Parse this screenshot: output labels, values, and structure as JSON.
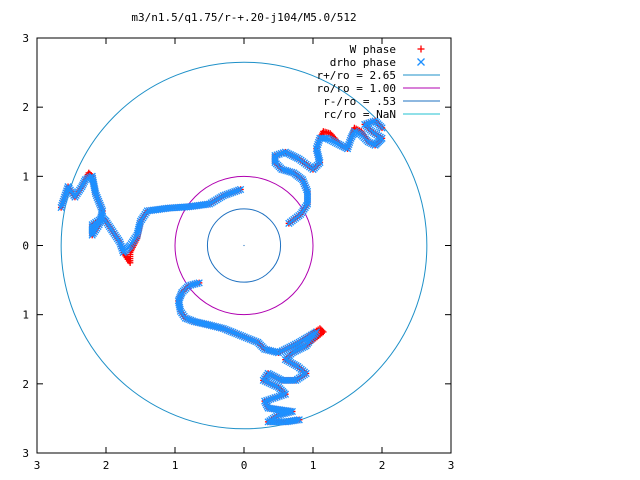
{
  "chart_data": {
    "type": "scatter",
    "title": "m3/n1.5/q1.75/r-+.20-j104/M5.0/512",
    "xlabel": "",
    "ylabel": "",
    "xlim": [
      -3,
      3
    ],
    "ylim": [
      -3,
      3
    ],
    "x_ticks": [
      {
        "value": -3,
        "label": "3"
      },
      {
        "value": -2,
        "label": "2"
      },
      {
        "value": -1,
        "label": "1"
      },
      {
        "value": 0,
        "label": "0"
      },
      {
        "value": 1,
        "label": "1"
      },
      {
        "value": 2,
        "label": "2"
      },
      {
        "value": 3,
        "label": "3"
      }
    ],
    "y_ticks": [
      {
        "value": -3,
        "label": "3"
      },
      {
        "value": -2,
        "label": "2"
      },
      {
        "value": -1,
        "label": "1"
      },
      {
        "value": 0,
        "label": "0"
      },
      {
        "value": 1,
        "label": "1"
      },
      {
        "value": 2,
        "label": "2"
      },
      {
        "value": 3,
        "label": "3"
      }
    ],
    "grid": false,
    "legend_position": "top-right",
    "series": [
      {
        "name": "W phase",
        "marker": "+",
        "color": "#ff0000",
        "arms": [
          [
            [
              -0.65,
              -0.54
            ],
            [
              -0.8,
              -0.58
            ],
            [
              -0.9,
              -0.68
            ],
            [
              -0.95,
              -0.8
            ],
            [
              -0.92,
              -0.95
            ],
            [
              -0.85,
              -1.05
            ],
            [
              -0.72,
              -1.1
            ],
            [
              -0.5,
              -1.15
            ],
            [
              -0.3,
              -1.2
            ],
            [
              -0.05,
              -1.3
            ],
            [
              0.2,
              -1.4
            ],
            [
              0.3,
              -1.5
            ],
            [
              0.5,
              -1.55
            ],
            [
              0.8,
              -1.4
            ],
            [
              1.1,
              -1.2
            ],
            [
              1.15,
              -1.25
            ],
            [
              0.9,
              -1.45
            ],
            [
              0.7,
              -1.55
            ],
            [
              0.6,
              -1.65
            ],
            [
              0.78,
              -1.75
            ],
            [
              0.9,
              -1.85
            ],
            [
              0.75,
              -1.95
            ],
            [
              0.55,
              -1.95
            ],
            [
              0.35,
              -1.85
            ],
            [
              0.28,
              -1.95
            ],
            [
              0.5,
              -2.05
            ],
            [
              0.6,
              -2.15
            ],
            [
              0.45,
              -2.2
            ],
            [
              0.3,
              -2.25
            ],
            [
              0.35,
              -2.35
            ],
            [
              0.55,
              -2.38
            ],
            [
              0.7,
              -2.4
            ],
            [
              0.5,
              -2.45
            ],
            [
              0.35,
              -2.55
            ],
            [
              0.6,
              -2.55
            ],
            [
              0.8,
              -2.52
            ]
          ],
          [
            [
              0.65,
              0.32
            ],
            [
              0.82,
              0.45
            ],
            [
              0.92,
              0.6
            ],
            [
              0.92,
              0.78
            ],
            [
              0.85,
              0.95
            ],
            [
              0.72,
              1.05
            ],
            [
              0.55,
              1.1
            ],
            [
              0.45,
              1.2
            ],
            [
              0.45,
              1.3
            ],
            [
              0.6,
              1.35
            ],
            [
              0.8,
              1.25
            ],
            [
              1.0,
              1.1
            ],
            [
              1.1,
              1.2
            ],
            [
              1.05,
              1.4
            ],
            [
              1.1,
              1.55
            ],
            [
              1.15,
              1.65
            ],
            [
              1.25,
              1.62
            ],
            [
              1.4,
              1.45
            ],
            [
              1.5,
              1.4
            ],
            [
              1.55,
              1.55
            ],
            [
              1.6,
              1.7
            ],
            [
              1.7,
              1.65
            ],
            [
              1.8,
              1.5
            ],
            [
              1.9,
              1.45
            ],
            [
              1.95,
              1.5
            ],
            [
              2.0,
              1.55
            ],
            [
              1.85,
              1.65
            ],
            [
              1.75,
              1.75
            ],
            [
              1.9,
              1.8
            ],
            [
              2.0,
              1.7
            ]
          ],
          [
            [
              -0.05,
              0.81
            ],
            [
              -0.3,
              0.72
            ],
            [
              -0.5,
              0.6
            ],
            [
              -0.8,
              0.56
            ],
            [
              -1.1,
              0.54
            ],
            [
              -1.4,
              0.5
            ],
            [
              -1.5,
              0.35
            ],
            [
              -1.55,
              0.1
            ],
            [
              -1.65,
              -0.1
            ],
            [
              -1.65,
              -0.25
            ],
            [
              -1.75,
              -0.1
            ],
            [
              -1.8,
              0.05
            ],
            [
              -1.9,
              0.2
            ],
            [
              -2.0,
              0.35
            ],
            [
              -2.05,
              0.4
            ],
            [
              -2.2,
              0.3
            ],
            [
              -2.2,
              0.15
            ],
            [
              -2.1,
              0.3
            ],
            [
              -2.05,
              0.5
            ],
            [
              -2.15,
              0.75
            ],
            [
              -2.2,
              1.0
            ],
            [
              -2.25,
              1.05
            ],
            [
              -2.35,
              0.85
            ],
            [
              -2.45,
              0.7
            ],
            [
              -2.55,
              0.85
            ],
            [
              -2.6,
              0.7
            ],
            [
              -2.65,
              0.55
            ]
          ]
        ]
      },
      {
        "name": "drho phase",
        "marker": "x",
        "color": "#1e90ff",
        "arms": [
          [
            [
              -0.65,
              -0.54
            ],
            [
              -0.8,
              -0.58
            ],
            [
              -0.9,
              -0.68
            ],
            [
              -0.95,
              -0.8
            ],
            [
              -0.92,
              -0.95
            ],
            [
              -0.85,
              -1.05
            ],
            [
              -0.72,
              -1.1
            ],
            [
              -0.5,
              -1.15
            ],
            [
              -0.3,
              -1.2
            ],
            [
              -0.05,
              -1.3
            ],
            [
              0.2,
              -1.4
            ],
            [
              0.3,
              -1.5
            ],
            [
              0.5,
              -1.55
            ],
            [
              0.8,
              -1.4
            ],
            [
              1.05,
              -1.25
            ],
            [
              0.9,
              -1.45
            ],
            [
              0.7,
              -1.55
            ],
            [
              0.6,
              -1.65
            ],
            [
              0.78,
              -1.75
            ],
            [
              0.9,
              -1.85
            ],
            [
              0.75,
              -1.95
            ],
            [
              0.55,
              -1.95
            ],
            [
              0.35,
              -1.85
            ],
            [
              0.28,
              -1.95
            ],
            [
              0.5,
              -2.05
            ],
            [
              0.6,
              -2.15
            ],
            [
              0.45,
              -2.2
            ],
            [
              0.3,
              -2.25
            ],
            [
              0.35,
              -2.35
            ],
            [
              0.55,
              -2.38
            ],
            [
              0.7,
              -2.4
            ],
            [
              0.5,
              -2.45
            ],
            [
              0.35,
              -2.55
            ],
            [
              0.6,
              -2.55
            ],
            [
              0.8,
              -2.52
            ]
          ],
          [
            [
              0.65,
              0.32
            ],
            [
              0.82,
              0.45
            ],
            [
              0.92,
              0.6
            ],
            [
              0.92,
              0.78
            ],
            [
              0.85,
              0.95
            ],
            [
              0.72,
              1.05
            ],
            [
              0.55,
              1.1
            ],
            [
              0.45,
              1.2
            ],
            [
              0.45,
              1.3
            ],
            [
              0.6,
              1.35
            ],
            [
              0.8,
              1.25
            ],
            [
              1.0,
              1.1
            ],
            [
              1.1,
              1.2
            ],
            [
              1.05,
              1.4
            ],
            [
              1.1,
              1.55
            ],
            [
              1.2,
              1.55
            ],
            [
              1.4,
              1.45
            ],
            [
              1.5,
              1.4
            ],
            [
              1.55,
              1.55
            ],
            [
              1.6,
              1.65
            ],
            [
              1.7,
              1.6
            ],
            [
              1.8,
              1.5
            ],
            [
              1.9,
              1.45
            ],
            [
              1.95,
              1.5
            ],
            [
              2.0,
              1.55
            ],
            [
              1.85,
              1.65
            ],
            [
              1.75,
              1.75
            ],
            [
              1.9,
              1.8
            ],
            [
              2.0,
              1.7
            ]
          ],
          [
            [
              -0.05,
              0.81
            ],
            [
              -0.3,
              0.72
            ],
            [
              -0.5,
              0.6
            ],
            [
              -0.8,
              0.56
            ],
            [
              -1.1,
              0.54
            ],
            [
              -1.4,
              0.5
            ],
            [
              -1.5,
              0.35
            ],
            [
              -1.55,
              0.15
            ],
            [
              -1.65,
              0.0
            ],
            [
              -1.7,
              -0.05
            ],
            [
              -1.75,
              -0.1
            ],
            [
              -1.8,
              0.05
            ],
            [
              -1.9,
              0.2
            ],
            [
              -2.0,
              0.35
            ],
            [
              -2.05,
              0.4
            ],
            [
              -2.2,
              0.3
            ],
            [
              -2.2,
              0.15
            ],
            [
              -2.1,
              0.3
            ],
            [
              -2.05,
              0.5
            ],
            [
              -2.15,
              0.75
            ],
            [
              -2.2,
              1.0
            ],
            [
              -2.3,
              0.95
            ],
            [
              -2.35,
              0.85
            ],
            [
              -2.45,
              0.7
            ],
            [
              -2.55,
              0.85
            ],
            [
              -2.6,
              0.7
            ],
            [
              -2.65,
              0.55
            ]
          ]
        ]
      },
      {
        "name": "r+/ro = 2.65",
        "type": "circle",
        "radius": 2.65,
        "color": "#1e90c8"
      },
      {
        "name": "ro/ro = 1.00",
        "type": "circle",
        "radius": 1.0,
        "color": "#b000b0"
      },
      {
        "name": "r-/ro = .53",
        "type": "circle",
        "radius": 0.53,
        "color": "#1e70c0"
      },
      {
        "name": "rc/ro = NaN",
        "type": "circle",
        "radius": null,
        "color": "#20c0d0"
      }
    ]
  }
}
